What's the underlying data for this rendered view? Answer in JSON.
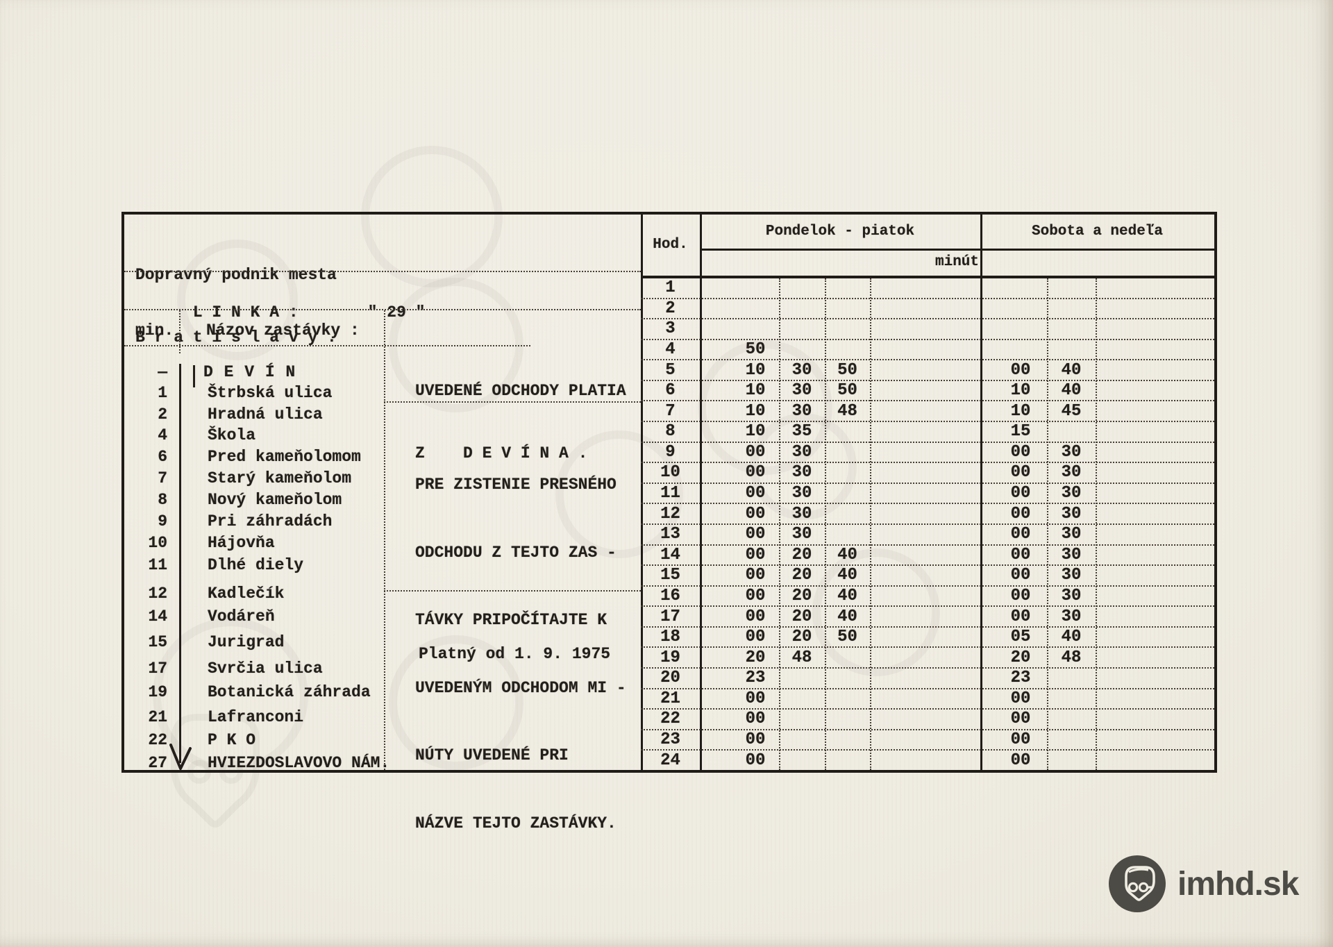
{
  "company": {
    "line1": "Dopravný podnik mesta",
    "line2": "B r a t i s l a v y ."
  },
  "line_info": {
    "label": "L I N K A :",
    "number": "\" 29 \""
  },
  "stops_section": {
    "min_header": "min.",
    "name_header": "Názov zastávky :",
    "stops": [
      {
        "min": "—",
        "name": "D E V Í N"
      },
      {
        "min": "1",
        "name": "Štrbská ulica"
      },
      {
        "min": "2",
        "name": "Hradná ulica"
      },
      {
        "min": "4",
        "name": "Škola"
      },
      {
        "min": "6",
        "name": "Pred kameňolomom"
      },
      {
        "min": "7",
        "name": "Starý kameňolom"
      },
      {
        "min": "8",
        "name": "Nový kameňolom"
      },
      {
        "min": "9",
        "name": "Pri záhradách"
      },
      {
        "min": "10",
        "name": "Hájovňa"
      },
      {
        "min": "11",
        "name": "Dlhé diely"
      },
      {
        "min": "12",
        "name": "Kadlečík"
      },
      {
        "min": "14",
        "name": "Vodáreň"
      },
      {
        "min": "15",
        "name": "Jurigrad"
      },
      {
        "min": "17",
        "name": "Svrčia ulica"
      },
      {
        "min": "19",
        "name": "Botanická záhrada"
      },
      {
        "min": "21",
        "name": "Lafranconi"
      },
      {
        "min": "22",
        "name": "P K O"
      },
      {
        "min": "27",
        "name": "HVIEZDOSLAVOVO NÁM."
      }
    ]
  },
  "notes": {
    "departure_note": [
      "UVEDENÉ ODCHODY PLATIA",
      "Z    D E V Í N A ."
    ],
    "instruction": [
      "PRE ZISTENIE PRESNÉHO",
      "ODCHODU Z TEJTO ZAS -",
      "TÁVKY PRIPOČÍTAJTE K",
      "UVEDENÝM ODCHODOM MI -",
      "NÚTY UVEDENÉ PRI",
      "NÁZVE TEJTO ZASTÁVKY."
    ],
    "validity": "Platný od 1. 9. 1975"
  },
  "timetable": {
    "hour_header": "Hod.",
    "weekday_header": "Pondelok - piatok",
    "weekend_header": "Sobota a nedeľa",
    "minutes_header": "minút",
    "rows": [
      {
        "hour": "1",
        "weekday": [],
        "weekend": []
      },
      {
        "hour": "2",
        "weekday": [],
        "weekend": []
      },
      {
        "hour": "3",
        "weekday": [],
        "weekend": []
      },
      {
        "hour": "4",
        "weekday": [
          "50"
        ],
        "weekend": []
      },
      {
        "hour": "5",
        "weekday": [
          "10",
          "30",
          "50"
        ],
        "weekend": [
          "00",
          "40"
        ]
      },
      {
        "hour": "6",
        "weekday": [
          "10",
          "30",
          "50"
        ],
        "weekend": [
          "10",
          "40"
        ]
      },
      {
        "hour": "7",
        "weekday": [
          "10",
          "30",
          "48"
        ],
        "weekend": [
          "10",
          "45"
        ]
      },
      {
        "hour": "8",
        "weekday": [
          "10",
          "35"
        ],
        "weekend": [
          "15"
        ]
      },
      {
        "hour": "9",
        "weekday": [
          "00",
          "30"
        ],
        "weekend": [
          "00",
          "30"
        ]
      },
      {
        "hour": "10",
        "weekday": [
          "00",
          "30"
        ],
        "weekend": [
          "00",
          "30"
        ]
      },
      {
        "hour": "11",
        "weekday": [
          "00",
          "30"
        ],
        "weekend": [
          "00",
          "30"
        ]
      },
      {
        "hour": "12",
        "weekday": [
          "00",
          "30"
        ],
        "weekend": [
          "00",
          "30"
        ]
      },
      {
        "hour": "13",
        "weekday": [
          "00",
          "30"
        ],
        "weekend": [
          "00",
          "30"
        ]
      },
      {
        "hour": "14",
        "weekday": [
          "00",
          "20",
          "40"
        ],
        "weekend": [
          "00",
          "30"
        ]
      },
      {
        "hour": "15",
        "weekday": [
          "00",
          "20",
          "40"
        ],
        "weekend": [
          "00",
          "30"
        ]
      },
      {
        "hour": "16",
        "weekday": [
          "00",
          "20",
          "40"
        ],
        "weekend": [
          "00",
          "30"
        ]
      },
      {
        "hour": "17",
        "weekday": [
          "00",
          "20",
          "40"
        ],
        "weekend": [
          "00",
          "30"
        ]
      },
      {
        "hour": "18",
        "weekday": [
          "00",
          "20",
          "50"
        ],
        "weekend": [
          "05",
          "40"
        ]
      },
      {
        "hour": "19",
        "weekday": [
          "20",
          "48"
        ],
        "weekend": [
          "20",
          "48"
        ]
      },
      {
        "hour": "20",
        "weekday": [
          "23"
        ],
        "weekend": [
          "23"
        ]
      },
      {
        "hour": "21",
        "weekday": [
          "00"
        ],
        "weekend": [
          "00"
        ]
      },
      {
        "hour": "22",
        "weekday": [
          "00"
        ],
        "weekend": [
          "00"
        ]
      },
      {
        "hour": "23",
        "weekday": [
          "00"
        ],
        "weekend": [
          "00"
        ]
      },
      {
        "hour": "24",
        "weekday": [
          "00"
        ],
        "weekend": [
          "00"
        ]
      }
    ]
  },
  "logo": {
    "text": "imhd.sk"
  }
}
